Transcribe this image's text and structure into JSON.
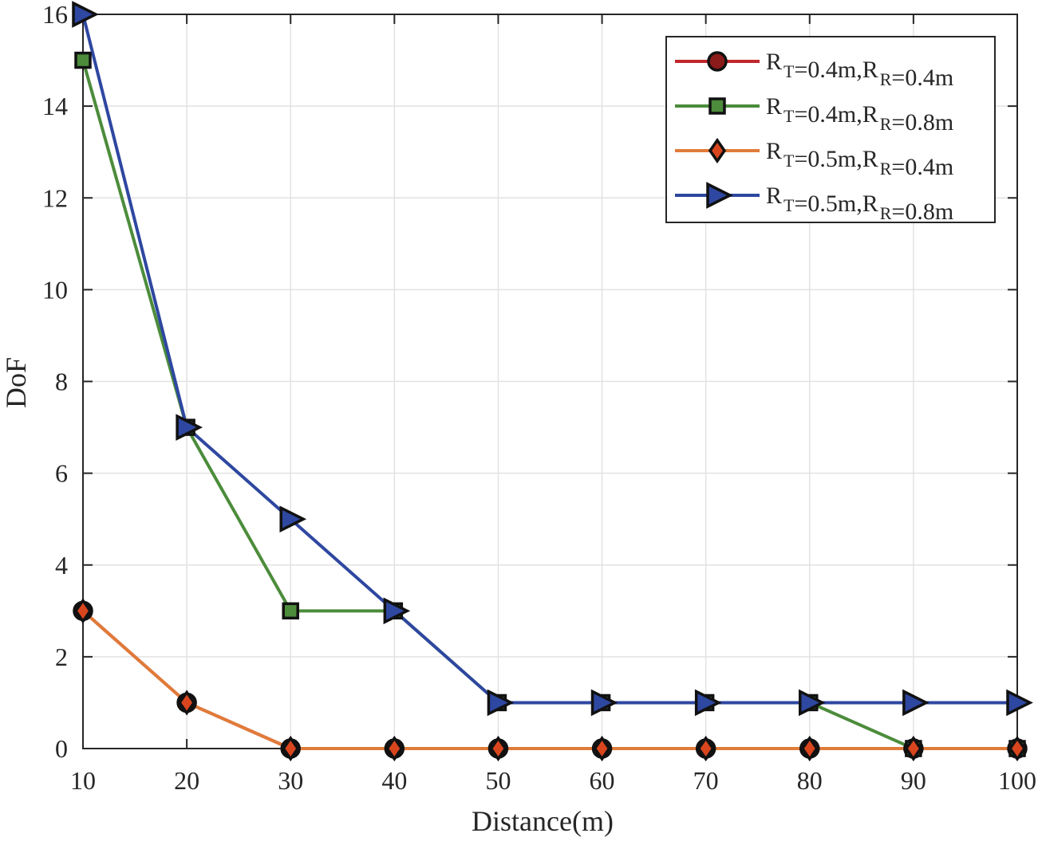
{
  "chart_data": {
    "type": "line",
    "title": "",
    "xlabel": "Distance(m)",
    "ylabel": "DoF",
    "xlim": [
      10,
      100
    ],
    "ylim": [
      0,
      16
    ],
    "xticks": [
      10,
      20,
      30,
      40,
      50,
      60,
      70,
      80,
      90,
      100
    ],
    "yticks": [
      0,
      2,
      4,
      6,
      8,
      10,
      12,
      14,
      16
    ],
    "grid": true,
    "legend_position": "top-right",
    "x": [
      10,
      20,
      30,
      40,
      50,
      60,
      70,
      80,
      90,
      100
    ],
    "series": [
      {
        "name": "R_T=0.4m,R_R=0.4m",
        "legend": {
          "a": "R",
          "a_sub": "T",
          "b": "=0.4m,R",
          "b_sub": "R",
          "c": "=0.4m"
        },
        "color": "#c0272d",
        "marker": "circle",
        "marker_fill": "#8b1a1a",
        "values": [
          3,
          1,
          0,
          0,
          0,
          0,
          0,
          0,
          0,
          0
        ]
      },
      {
        "name": "R_T=0.4m,R_R=0.8m",
        "legend": {
          "a": "R",
          "a_sub": "T",
          "b": "=0.4m,R",
          "b_sub": "R",
          "c": "=0.8m"
        },
        "color": "#4c8c3b",
        "marker": "square",
        "marker_fill": "#4c8c3b",
        "values": [
          15,
          7,
          3,
          3,
          1,
          1,
          1,
          1,
          0,
          0
        ]
      },
      {
        "name": "R_T=0.5m,R_R=0.4m",
        "legend": {
          "a": "R",
          "a_sub": "T",
          "b": "=0.5m,R",
          "b_sub": "R",
          "c": "=0.4m"
        },
        "color": "#e07b39",
        "marker": "diamond",
        "marker_fill": "#d9461e",
        "values": [
          3,
          1,
          0,
          0,
          0,
          0,
          0,
          0,
          0,
          0
        ]
      },
      {
        "name": "R_T=0.5m,R_R=0.8m",
        "legend": {
          "a": "R",
          "a_sub": "T",
          "b": "=0.5m,R",
          "b_sub": "R",
          "c": "=0.8m"
        },
        "color": "#2e47a0",
        "marker": "triangle-right",
        "marker_fill": "#2e47a0",
        "values": [
          16,
          7,
          5,
          3,
          1,
          1,
          1,
          1,
          1,
          1
        ]
      }
    ]
  }
}
